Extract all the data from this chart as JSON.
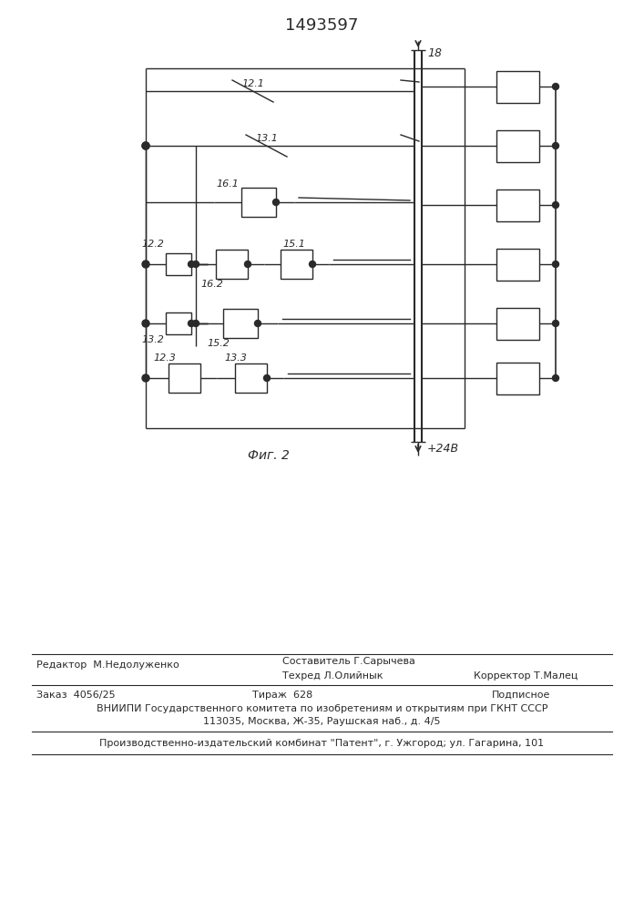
{
  "title": "1493597",
  "fig_label": "Фиг. 2",
  "line_color": "#2a2a2a",
  "lw": 1.0,
  "footer": {
    "line1_left": "Редактор  М.Недолуженко",
    "line1_center": "Составитель Г.Сарычева",
    "line2_center": "Техред Л.Олийнык",
    "line2_right": "Корректор Т.Малец",
    "line3_left": "Заказ  4056/25",
    "line3_center": "Тираж  628",
    "line3_right": "Подписное",
    "line4": "ВНИИПИ Государственного комитета по изобретениям и открытиям при ГКНТ СССР",
    "line5": "113035, Москва, Ж-35, Раушская наб., д. 4/5",
    "line6": "Производственно-издательский комбинат \"Патент\", г. Ужгород; ул. Гагарина, 101"
  }
}
